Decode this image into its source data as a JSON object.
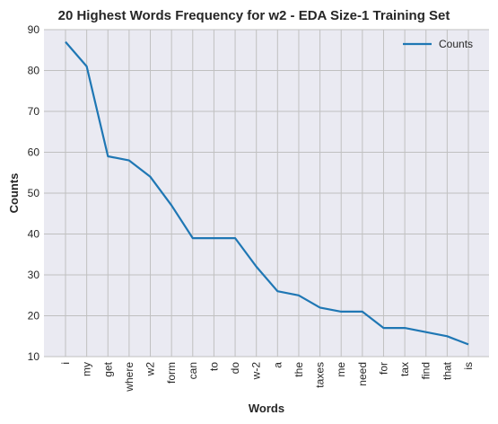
{
  "chart_data": {
    "type": "line",
    "title": "20 Highest Words Frequency for w2 - EDA Size-1 Training Set",
    "xlabel": "Words",
    "ylabel": "Counts",
    "categories": [
      "i",
      "my",
      "get",
      "where",
      "w2",
      "form",
      "can",
      "to",
      "do",
      "w-2",
      "a",
      "the",
      "taxes",
      "me",
      "need",
      "for",
      "tax",
      "find",
      "that",
      "is"
    ],
    "series": [
      {
        "name": "Counts",
        "values": [
          87,
          81,
          59,
          58,
          54,
          47,
          39,
          39,
          39,
          32,
          26,
          25,
          22,
          21,
          21,
          17,
          17,
          16,
          15,
          13
        ]
      }
    ],
    "ylim": [
      10,
      90
    ],
    "yticks": [
      10,
      20,
      30,
      40,
      50,
      60,
      70,
      80,
      90
    ],
    "grid": true,
    "legend_position": "top-right",
    "colors": {
      "line": "#1f77b4",
      "plot_background": "#eaeaf2",
      "grid": "#c0c0c0"
    }
  }
}
